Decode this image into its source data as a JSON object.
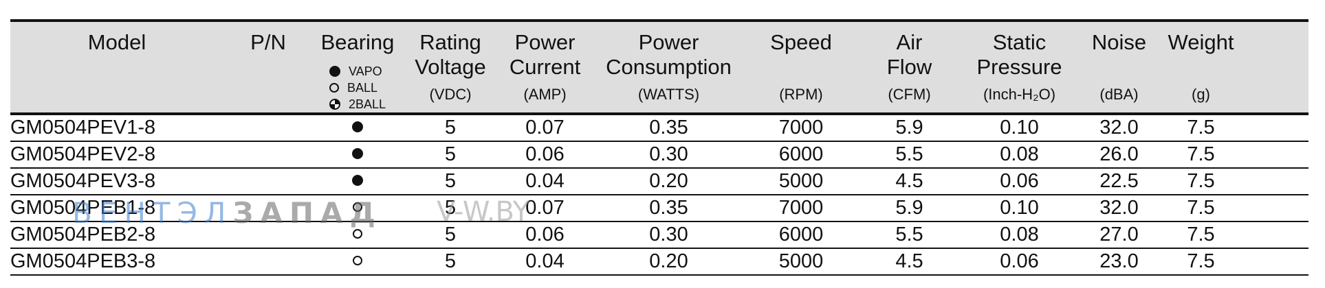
{
  "table": {
    "headers": {
      "model": "Model",
      "pn": "P/N",
      "bearing": "Bearing",
      "rating_voltage_1": "Rating",
      "rating_voltage_2": "Voltage",
      "rating_voltage_unit": "(VDC)",
      "power_current_1": "Power",
      "power_current_2": "Current",
      "power_current_unit": "(AMP)",
      "power_consumption_1": "Power",
      "power_consumption_2": "Consumption",
      "power_consumption_unit": "(WATTS)",
      "speed": "Speed",
      "speed_unit": "(RPM)",
      "air_flow_1": "Air",
      "air_flow_2": "Flow",
      "air_flow_unit": "(CFM)",
      "static_pressure_1": "Static",
      "static_pressure_2": "Pressure",
      "static_pressure_unit": "(Inch-H₂O)",
      "noise": "Noise",
      "noise_unit": "(dBA)",
      "weight": "Weight",
      "weight_unit": "(g)"
    },
    "bearing_legend": [
      {
        "label": "VAPO",
        "icon": "filled-circle-icon"
      },
      {
        "label": "BALL",
        "icon": "open-circle-icon"
      },
      {
        "label": "2BALL",
        "icon": "two-ball-icon"
      }
    ],
    "rows": [
      {
        "model": "GM0504PEV1-8",
        "pn": "",
        "bearing": "VAPO",
        "voltage": "5",
        "current": "0.07",
        "consumption": "0.35",
        "speed": "7000",
        "air_flow": "5.9",
        "static_pressure": "0.10",
        "noise": "32.0",
        "weight": "7.5"
      },
      {
        "model": "GM0504PEV2-8",
        "pn": "",
        "bearing": "VAPO",
        "voltage": "5",
        "current": "0.06",
        "consumption": "0.30",
        "speed": "6000",
        "air_flow": "5.5",
        "static_pressure": "0.08",
        "noise": "26.0",
        "weight": "7.5"
      },
      {
        "model": "GM0504PEV3-8",
        "pn": "",
        "bearing": "VAPO",
        "voltage": "5",
        "current": "0.04",
        "consumption": "0.20",
        "speed": "5000",
        "air_flow": "4.5",
        "static_pressure": "0.06",
        "noise": "22.5",
        "weight": "7.5"
      },
      {
        "model": "GM0504PEB1-8",
        "pn": "",
        "bearing": "BALL",
        "voltage": "5",
        "current": "0.07",
        "consumption": "0.35",
        "speed": "7000",
        "air_flow": "5.9",
        "static_pressure": "0.10",
        "noise": "32.0",
        "weight": "7.5"
      },
      {
        "model": "GM0504PEB2-8",
        "pn": "",
        "bearing": "BALL",
        "voltage": "5",
        "current": "0.06",
        "consumption": "0.30",
        "speed": "6000",
        "air_flow": "5.5",
        "static_pressure": "0.08",
        "noise": "27.0",
        "weight": "7.5"
      },
      {
        "model": "GM0504PEB3-8",
        "pn": "",
        "bearing": "BALL",
        "voltage": "5",
        "current": "0.04",
        "consumption": "0.20",
        "speed": "5000",
        "air_flow": "4.5",
        "static_pressure": "0.06",
        "noise": "23.0",
        "weight": "7.5"
      }
    ]
  },
  "watermark": {
    "part1": "ВЕНТЭЛ",
    "part2": "ЗАПАД",
    "site": "V-W.BY",
    "colors": {
      "part1": "#3f7fd1",
      "part2": "#666666",
      "site": "#9a9a9a"
    }
  }
}
